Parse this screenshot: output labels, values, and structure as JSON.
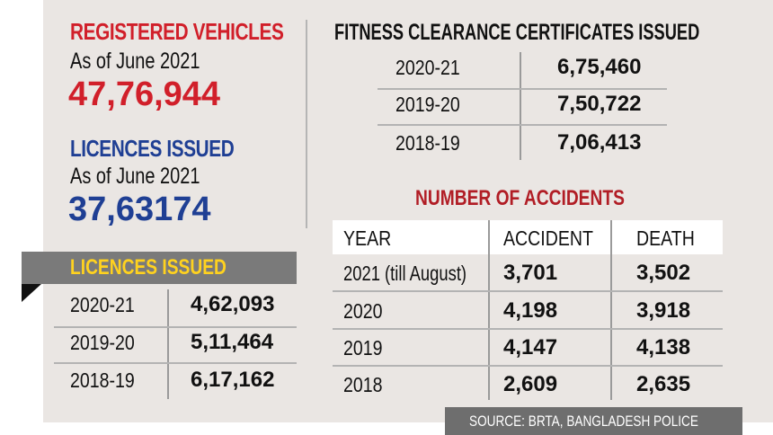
{
  "registered_vehicles": {
    "title": "REGISTERED VEHICLES",
    "as_of": "As of June 2021",
    "value": "47,76,944"
  },
  "licences_total": {
    "title": "LICENCES ISSUED",
    "as_of": "As of June 2021",
    "value": "37,63174"
  },
  "licences_table": {
    "title": "LICENCES ISSUED",
    "rows": [
      {
        "year": "2020-21",
        "value": "4,62,093"
      },
      {
        "year": "2019-20",
        "value": "5,11,464"
      },
      {
        "year": "2018-19",
        "value": "6,17,162"
      }
    ]
  },
  "fitness": {
    "title": "FITNESS CLEARANCE CERTIFICATES ISSUED",
    "rows": [
      {
        "year": "2020-21",
        "value": "6,75,460"
      },
      {
        "year": "2019-20",
        "value": "7,50,722"
      },
      {
        "year": "2018-19",
        "value": "7,06,413"
      }
    ]
  },
  "accidents": {
    "title": "NUMBER OF ACCIDENTS",
    "headers": [
      "YEAR",
      "ACCIDENT",
      "DEATH"
    ],
    "rows": [
      {
        "year": "2021 (till August)",
        "accident": "3,701",
        "death": "3,502"
      },
      {
        "year": "2020",
        "accident": "4,198",
        "death": "3,918"
      },
      {
        "year": "2019",
        "accident": "4,147",
        "death": "4,138"
      },
      {
        "year": "2018",
        "accident": "2,609",
        "death": "2,635"
      }
    ]
  },
  "source": "SOURCE: BRTA, BANGLADESH POLICE",
  "colors": {
    "red": "#d11f2a",
    "blue": "#1f3f94",
    "banner_gray": "#7a7a7a",
    "banner_yellow": "#ffd21f",
    "panel_bg": "#eae6e3"
  }
}
